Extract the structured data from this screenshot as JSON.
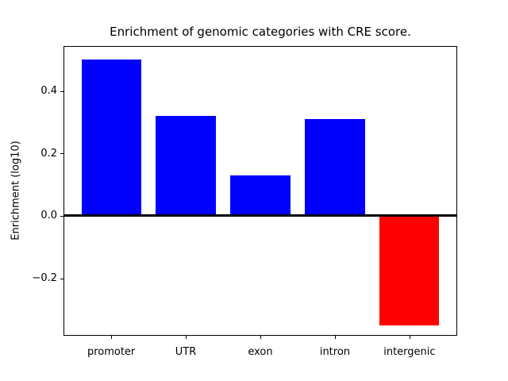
{
  "chart_data": {
    "type": "bar",
    "title": "Enrichment of genomic categories with CRE score.",
    "ylabel": "Enrichment (log10)",
    "xlabel": "",
    "categories": [
      "promoter",
      "UTR",
      "exon",
      "intron",
      "intergenic"
    ],
    "values": [
      0.5,
      0.32,
      0.13,
      0.31,
      -0.35
    ],
    "bar_colors": [
      "#0000ff",
      "#0000ff",
      "#0000ff",
      "#0000ff",
      "#ff0000"
    ],
    "positive_color": "#0000ff",
    "negative_color": "#ff0000",
    "yticks": [
      0.4,
      0.2,
      0.0,
      -0.2
    ],
    "ytick_labels": [
      "0.4",
      "0.2",
      "0.0",
      "−0.2"
    ],
    "ylim": [
      -0.384,
      0.544
    ],
    "xlim": [
      -0.64,
      4.64
    ],
    "bar_width": 0.8,
    "zero_line": true,
    "grid": false,
    "legend_position": "none",
    "background": "#ffffff",
    "axis_color": "#000000"
  }
}
